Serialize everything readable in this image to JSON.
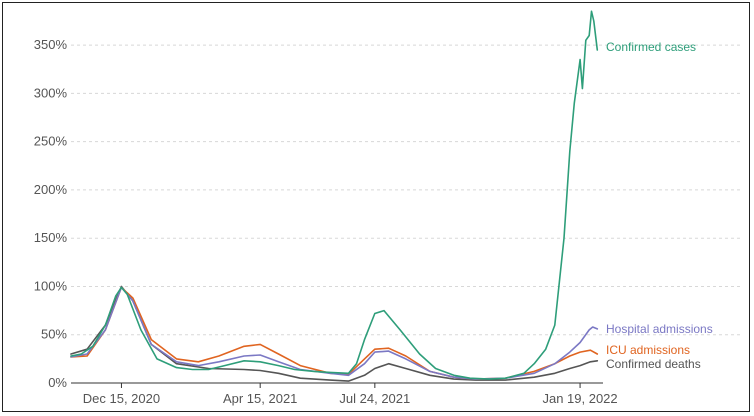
{
  "chart_data": {
    "type": "line",
    "title": "",
    "xlabel": "",
    "ylabel": "",
    "ylim": [
      0,
      375
    ],
    "y_ticks": [
      "0%",
      "50%",
      "100%",
      "150%",
      "200%",
      "250%",
      "300%",
      "350%"
    ],
    "y_tick_values": [
      0,
      50,
      100,
      150,
      200,
      250,
      300,
      350
    ],
    "x_range": [
      "2020-11-01",
      "2022-02-08"
    ],
    "x_ticks": [
      {
        "date": "2020-12-15",
        "label": "Dec 15, 2020"
      },
      {
        "date": "2021-04-15",
        "label": "Apr 15, 2021"
      },
      {
        "date": "2021-07-24",
        "label": "Jul 24, 2021"
      },
      {
        "date": "2022-01-19",
        "label": "Jan 19, 2022"
      }
    ],
    "grid": "horizontal dashed",
    "legend": "inline labels at line ends (right)",
    "series": [
      {
        "name": "Confirmed cases",
        "color": "#2e9e7a",
        "points": [
          [
            "2020-11-01",
            28
          ],
          [
            "2020-11-10",
            30
          ],
          [
            "2020-11-20",
            38
          ],
          [
            "2020-12-01",
            60
          ],
          [
            "2020-12-10",
            90
          ],
          [
            "2020-12-15",
            99
          ],
          [
            "2020-12-20",
            92
          ],
          [
            "2021-01-01",
            55
          ],
          [
            "2021-01-15",
            25
          ],
          [
            "2021-02-01",
            16
          ],
          [
            "2021-02-15",
            14
          ],
          [
            "2021-03-01",
            14
          ],
          [
            "2021-03-15",
            18
          ],
          [
            "2021-04-01",
            23
          ],
          [
            "2021-04-15",
            22
          ],
          [
            "2021-05-01",
            18
          ],
          [
            "2021-05-15",
            14
          ],
          [
            "2021-06-01",
            12
          ],
          [
            "2021-06-15",
            11
          ],
          [
            "2021-07-01",
            10
          ],
          [
            "2021-07-08",
            20
          ],
          [
            "2021-07-15",
            45
          ],
          [
            "2021-07-24",
            72
          ],
          [
            "2021-08-01",
            75
          ],
          [
            "2021-08-15",
            55
          ],
          [
            "2021-09-01",
            30
          ],
          [
            "2021-09-15",
            15
          ],
          [
            "2021-10-01",
            8
          ],
          [
            "2021-10-15",
            5
          ],
          [
            "2021-11-01",
            4
          ],
          [
            "2021-11-15",
            5
          ],
          [
            "2021-12-01",
            10
          ],
          [
            "2021-12-10",
            20
          ],
          [
            "2021-12-20",
            35
          ],
          [
            "2021-12-28",
            60
          ],
          [
            "2022-01-05",
            150
          ],
          [
            "2022-01-10",
            240
          ],
          [
            "2022-01-14",
            290
          ],
          [
            "2022-01-19",
            335
          ],
          [
            "2022-01-21",
            305
          ],
          [
            "2022-01-24",
            355
          ],
          [
            "2022-01-27",
            360
          ],
          [
            "2022-01-29",
            385
          ],
          [
            "2022-01-31",
            375
          ],
          [
            "2022-02-03",
            345
          ]
        ]
      },
      {
        "name": "Hospital admissions",
        "color": "#7b78c4",
        "points": [
          [
            "2020-11-01",
            27
          ],
          [
            "2020-11-15",
            30
          ],
          [
            "2020-12-01",
            55
          ],
          [
            "2020-12-15",
            99
          ],
          [
            "2020-12-25",
            85
          ],
          [
            "2021-01-10",
            40
          ],
          [
            "2021-02-01",
            22
          ],
          [
            "2021-02-20",
            18
          ],
          [
            "2021-03-10",
            22
          ],
          [
            "2021-04-01",
            28
          ],
          [
            "2021-04-15",
            29
          ],
          [
            "2021-05-01",
            22
          ],
          [
            "2021-05-20",
            14
          ],
          [
            "2021-06-15",
            10
          ],
          [
            "2021-07-01",
            8
          ],
          [
            "2021-07-15",
            20
          ],
          [
            "2021-07-24",
            32
          ],
          [
            "2021-08-05",
            33
          ],
          [
            "2021-08-20",
            25
          ],
          [
            "2021-09-10",
            12
          ],
          [
            "2021-10-01",
            6
          ],
          [
            "2021-10-20",
            4
          ],
          [
            "2021-11-15",
            5
          ],
          [
            "2021-12-10",
            10
          ],
          [
            "2021-12-28",
            20
          ],
          [
            "2022-01-10",
            32
          ],
          [
            "2022-01-19",
            42
          ],
          [
            "2022-01-27",
            55
          ],
          [
            "2022-01-30",
            58
          ],
          [
            "2022-02-03",
            56
          ]
        ]
      },
      {
        "name": "ICU admissions",
        "color": "#e06420",
        "points": [
          [
            "2020-11-01",
            27
          ],
          [
            "2020-11-15",
            28
          ],
          [
            "2020-12-01",
            55
          ],
          [
            "2020-12-15",
            99
          ],
          [
            "2020-12-25",
            88
          ],
          [
            "2021-01-10",
            45
          ],
          [
            "2021-02-01",
            25
          ],
          [
            "2021-02-20",
            22
          ],
          [
            "2021-03-10",
            28
          ],
          [
            "2021-04-01",
            38
          ],
          [
            "2021-04-15",
            40
          ],
          [
            "2021-05-01",
            30
          ],
          [
            "2021-05-20",
            18
          ],
          [
            "2021-06-15",
            10
          ],
          [
            "2021-07-01",
            9
          ],
          [
            "2021-07-15",
            25
          ],
          [
            "2021-07-24",
            35
          ],
          [
            "2021-08-05",
            36
          ],
          [
            "2021-08-20",
            28
          ],
          [
            "2021-09-10",
            12
          ],
          [
            "2021-10-01",
            6
          ],
          [
            "2021-10-20",
            4
          ],
          [
            "2021-11-15",
            5
          ],
          [
            "2021-12-10",
            12
          ],
          [
            "2021-12-28",
            20
          ],
          [
            "2022-01-10",
            28
          ],
          [
            "2022-01-19",
            32
          ],
          [
            "2022-01-28",
            34
          ],
          [
            "2022-02-03",
            30
          ]
        ]
      },
      {
        "name": "Confirmed deaths",
        "color": "#555555",
        "points": [
          [
            "2020-11-01",
            30
          ],
          [
            "2020-11-15",
            35
          ],
          [
            "2020-12-01",
            60
          ],
          [
            "2020-12-15",
            100
          ],
          [
            "2020-12-25",
            85
          ],
          [
            "2021-01-10",
            40
          ],
          [
            "2021-02-01",
            20
          ],
          [
            "2021-03-01",
            15
          ],
          [
            "2021-04-01",
            14
          ],
          [
            "2021-04-15",
            13
          ],
          [
            "2021-05-01",
            10
          ],
          [
            "2021-05-20",
            5
          ],
          [
            "2021-06-15",
            3
          ],
          [
            "2021-07-01",
            2
          ],
          [
            "2021-07-15",
            8
          ],
          [
            "2021-07-24",
            15
          ],
          [
            "2021-08-05",
            20
          ],
          [
            "2021-08-20",
            15
          ],
          [
            "2021-09-10",
            8
          ],
          [
            "2021-10-01",
            4
          ],
          [
            "2021-10-20",
            3
          ],
          [
            "2021-11-15",
            3
          ],
          [
            "2021-12-10",
            6
          ],
          [
            "2021-12-28",
            10
          ],
          [
            "2022-01-10",
            15
          ],
          [
            "2022-01-19",
            18
          ],
          [
            "2022-01-28",
            22
          ],
          [
            "2022-02-03",
            23
          ]
        ]
      }
    ]
  }
}
